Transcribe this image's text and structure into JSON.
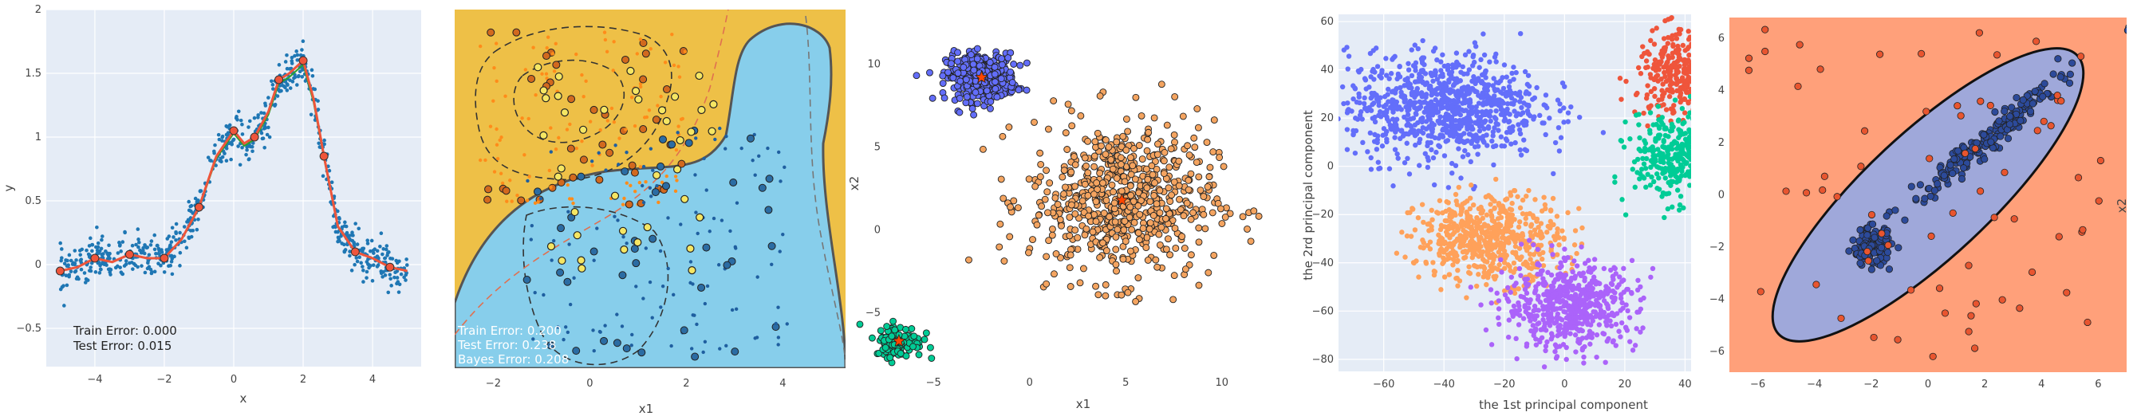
{
  "colors": {
    "plot_bg": "#e5ecf6",
    "grid": "#ffffff",
    "tick_text": "#444444",
    "dot_blue": "#1f77b4",
    "fit_red": "#ef553b",
    "true_green": "#2ca02c",
    "boundary_yellow": "#eec047",
    "boundary_blue": "#87ceeb",
    "cluster_purple": "#636efa",
    "cluster_orange": "#f4a460",
    "cluster_green": "#00cc96",
    "tsne_red": "#ef553b",
    "tsne_blue": "#636efa",
    "tsne_green": "#00cc96",
    "tsne_orange": "#ffa15a",
    "tsne_violet": "#ab63fa",
    "ellipse_fill": "#9fa8da",
    "salmon_bg": "#ffa07a",
    "red_dot": "#e8552f",
    "navy_dot": "#2c4a9a"
  },
  "chart_data": [
    {
      "type": "scatter",
      "xlabel": "x",
      "ylabel": "y",
      "xlim": [
        -5.4,
        5.4
      ],
      "ylim": [
        -0.8,
        2.0
      ],
      "xticks": [
        -4,
        -2,
        0,
        2,
        4
      ],
      "xtick_labels": [
        "−4",
        "−2",
        "0",
        "2",
        "4"
      ],
      "yticks": [
        -0.5,
        0,
        0.5,
        1,
        1.5,
        2
      ],
      "ytick_labels": [
        "−0.5",
        "0",
        "0.5",
        "1",
        "1.5",
        "2"
      ],
      "grid": true,
      "fit_curve": {
        "x": [
          -5,
          -4.5,
          -4,
          -3.5,
          -3,
          -2.5,
          -2,
          -1.5,
          -1,
          -0.5,
          0,
          0.3,
          0.6,
          1,
          1.3,
          1.6,
          2,
          2.3,
          2.6,
          3,
          3.5,
          4,
          4.5,
          5
        ],
        "y": [
          -0.05,
          -0.02,
          0.05,
          0.02,
          0.08,
          0.05,
          0.05,
          0.2,
          0.45,
          0.85,
          1.05,
          0.95,
          1.0,
          1.2,
          1.45,
          1.5,
          1.6,
          1.3,
          0.85,
          0.3,
          0.1,
          0.05,
          -0.02,
          -0.05
        ]
      },
      "annotations": [
        "Train Error: 0.000",
        "Test Error: 0.015"
      ]
    },
    {
      "type": "scatter",
      "xlabel": "x1",
      "ylabel": "",
      "xlim": [
        -2.8,
        5.3
      ],
      "ylim": [
        -2.0,
        2.6
      ],
      "xticks": [
        -2,
        0,
        2,
        4
      ],
      "xtick_labels": [
        "−2",
        "0",
        "2",
        "4"
      ],
      "grid": false,
      "annotations": [
        "Train Error: 0.200",
        "Test Error: 0.238",
        "Bayes Error: 0.208"
      ]
    },
    {
      "type": "scatter",
      "xlabel": "x1",
      "ylabel": "x2",
      "xlim": [
        -7.5,
        12
      ],
      "ylim": [
        -8,
        13
      ],
      "xticks": [
        -5,
        0,
        5,
        10
      ],
      "xtick_labels": [
        "−5",
        "0",
        "5",
        "10"
      ],
      "yticks": [
        -5,
        0,
        5,
        10
      ],
      "ytick_labels": [
        "−5",
        "0",
        "5",
        "10"
      ],
      "grid": false,
      "clusters": [
        {
          "center": [
            -2.5,
            9.2
          ],
          "spread": 0.9
        },
        {
          "center": [
            4.8,
            1.8
          ],
          "spread": 2.4
        },
        {
          "center": [
            -6.8,
            -6.7
          ],
          "spread": 0.6
        }
      ]
    },
    {
      "type": "scatter",
      "xlabel": "the 1st principal component",
      "ylabel": "the 2rd principal component",
      "xlim": [
        -75,
        42
      ],
      "ylim": [
        -85,
        63
      ],
      "xticks": [
        -60,
        -40,
        -20,
        0,
        20,
        40
      ],
      "xtick_labels": [
        "−60",
        "−40",
        "−20",
        "0",
        "20",
        "40"
      ],
      "yticks": [
        -80,
        -60,
        -40,
        -20,
        0,
        20,
        40,
        60
      ],
      "ytick_labels": [
        "−80",
        "−60",
        "−40",
        "−20",
        "0",
        "20",
        "40",
        "60"
      ],
      "grid": true
    },
    {
      "type": "scatter",
      "xlabel": "",
      "ylabel": "x2",
      "xlim": [
        -7,
        7
      ],
      "ylim": [
        -6.8,
        6.8
      ],
      "xticks": [
        -6,
        -4,
        -2,
        0,
        2,
        4,
        6
      ],
      "xtick_labels": [
        "−6",
        "−4",
        "−2",
        "0",
        "2",
        "4",
        "6"
      ],
      "yticks": [
        -6,
        -4,
        -2,
        0,
        2,
        4,
        6
      ],
      "ytick_labels": [
        "−6",
        "−4",
        "−2",
        "0",
        "2",
        "4",
        "6"
      ],
      "grid": false
    }
  ]
}
